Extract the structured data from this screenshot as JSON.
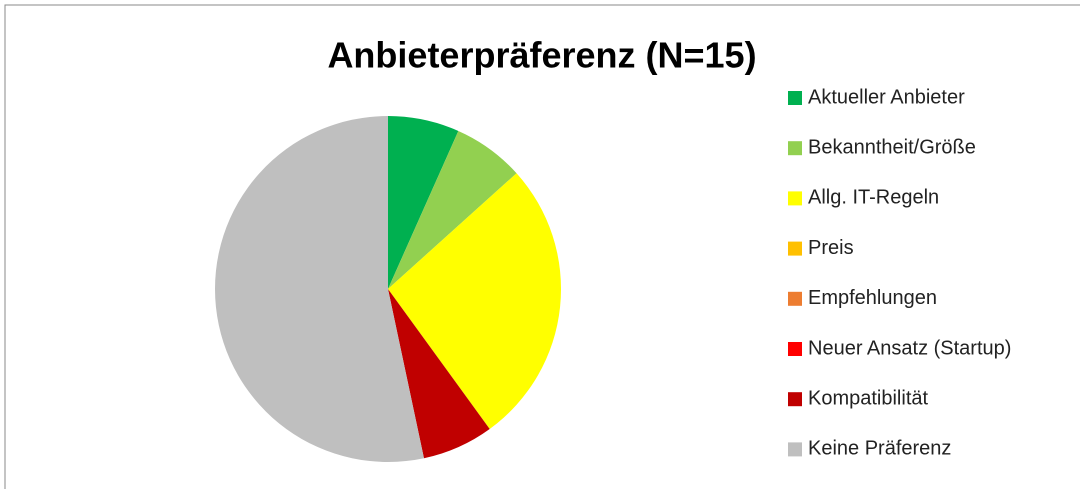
{
  "chart_data": {
    "type": "pie",
    "title": "Anbieterpräferenz (N=15)",
    "categories": [
      "Aktueller Anbieter",
      "Bekanntheit/Größe",
      "Allg. IT-Regeln",
      "Preis",
      "Empfehlungen",
      "Neuer Ansatz (Startup)",
      "Kompatibilität",
      "Keine Präferenz"
    ],
    "values": [
      1,
      1,
      4,
      0,
      0,
      0,
      1,
      8
    ],
    "colors": [
      "#00b050",
      "#92d050",
      "#ffff00",
      "#ffc000",
      "#ed7d31",
      "#ff0000",
      "#c00000",
      "#bfbfbf"
    ],
    "legend": "right"
  }
}
